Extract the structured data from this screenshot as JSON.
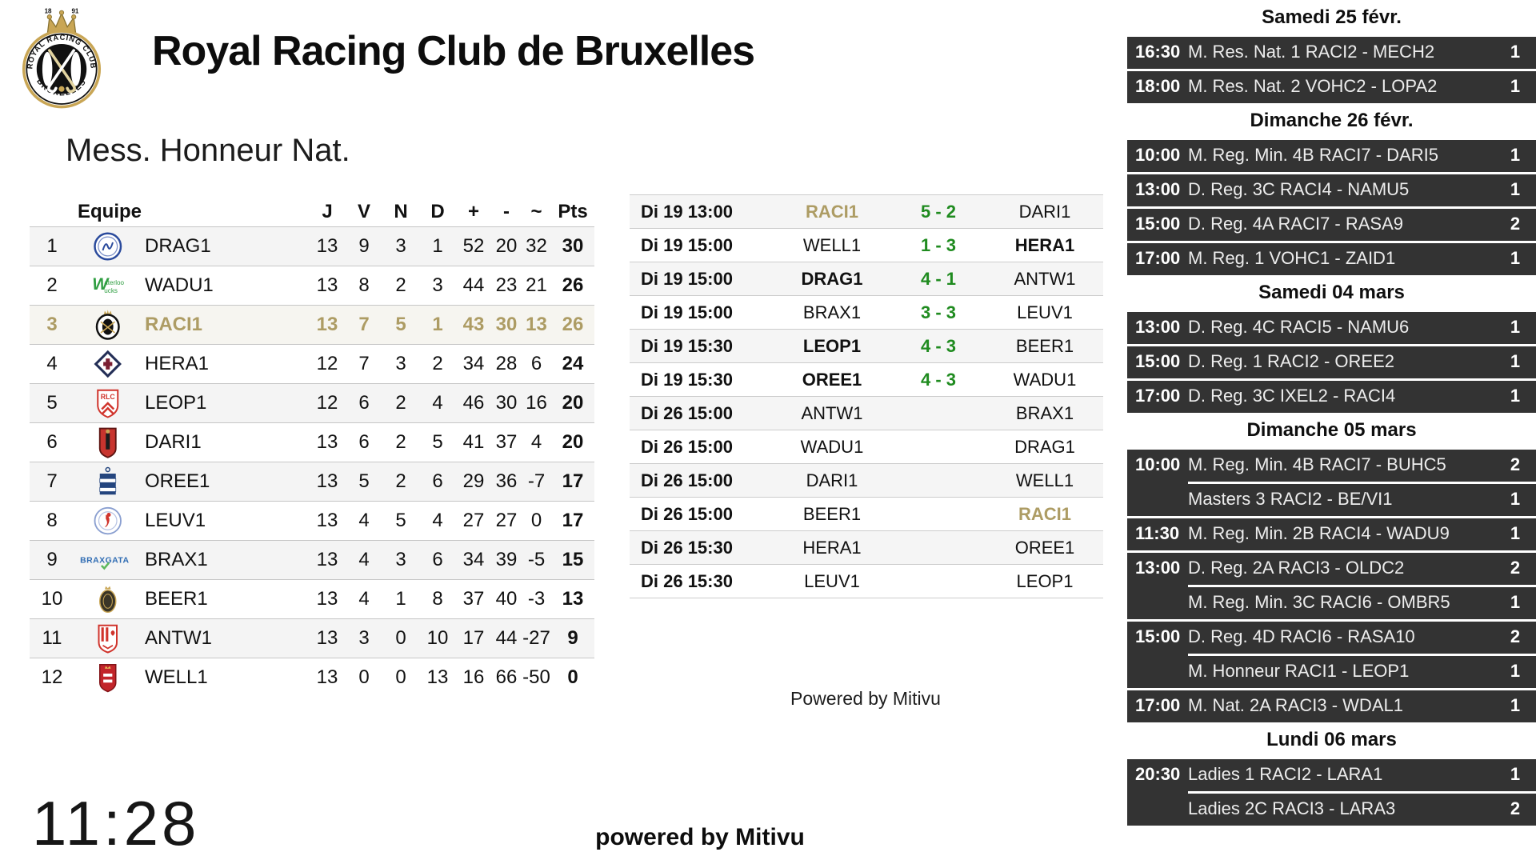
{
  "colors": {
    "gold": "#ad9c64",
    "score_green": "#1f8b1f",
    "sidebar_dark": "#333333"
  },
  "header": {
    "title": "Royal Racing Club de Bruxelles",
    "crest": {
      "top": "ROYAL RACING CLUB",
      "bottom": "BRUXELLES",
      "year_left": "18",
      "year_right": "91"
    }
  },
  "league": {
    "title": "Mess. Honneur Nat."
  },
  "standings": {
    "columns": [
      "Equipe",
      "J",
      "V",
      "N",
      "D",
      "+",
      "-",
      "~",
      "Pts"
    ],
    "rows": [
      {
        "rank": "1",
        "team": "DRAG1",
        "logo": "drag",
        "j": "13",
        "v": "9",
        "n": "3",
        "d": "1",
        "plus": "52",
        "minus": "20",
        "diff": "32",
        "pts": "30",
        "highlight": false
      },
      {
        "rank": "2",
        "team": "WADU1",
        "logo": "wadu",
        "j": "13",
        "v": "8",
        "n": "2",
        "d": "3",
        "plus": "44",
        "minus": "23",
        "diff": "21",
        "pts": "26",
        "highlight": false
      },
      {
        "rank": "3",
        "team": "RACI1",
        "logo": "raci",
        "j": "13",
        "v": "7",
        "n": "5",
        "d": "1",
        "plus": "43",
        "minus": "30",
        "diff": "13",
        "pts": "26",
        "highlight": true
      },
      {
        "rank": "4",
        "team": "HERA1",
        "logo": "hera",
        "j": "12",
        "v": "7",
        "n": "3",
        "d": "2",
        "plus": "34",
        "minus": "28",
        "diff": "6",
        "pts": "24",
        "highlight": false
      },
      {
        "rank": "5",
        "team": "LEOP1",
        "logo": "leop",
        "j": "12",
        "v": "6",
        "n": "2",
        "d": "4",
        "plus": "46",
        "minus": "30",
        "diff": "16",
        "pts": "20",
        "highlight": false
      },
      {
        "rank": "6",
        "team": "DARI1",
        "logo": "dari",
        "j": "13",
        "v": "6",
        "n": "2",
        "d": "5",
        "plus": "41",
        "minus": "37",
        "diff": "4",
        "pts": "20",
        "highlight": false
      },
      {
        "rank": "7",
        "team": "OREE1",
        "logo": "oree",
        "j": "13",
        "v": "5",
        "n": "2",
        "d": "6",
        "plus": "29",
        "minus": "36",
        "diff": "-7",
        "pts": "17",
        "highlight": false
      },
      {
        "rank": "8",
        "team": "LEUV1",
        "logo": "leuv",
        "j": "13",
        "v": "4",
        "n": "5",
        "d": "4",
        "plus": "27",
        "minus": "27",
        "diff": "0",
        "pts": "17",
        "highlight": false
      },
      {
        "rank": "9",
        "team": "BRAX1",
        "logo": "brax",
        "j": "13",
        "v": "4",
        "n": "3",
        "d": "6",
        "plus": "34",
        "minus": "39",
        "diff": "-5",
        "pts": "15",
        "highlight": false
      },
      {
        "rank": "10",
        "team": "BEER1",
        "logo": "beer",
        "j": "13",
        "v": "4",
        "n": "1",
        "d": "8",
        "plus": "37",
        "minus": "40",
        "diff": "-3",
        "pts": "13",
        "highlight": false
      },
      {
        "rank": "11",
        "team": "ANTW1",
        "logo": "antw",
        "j": "13",
        "v": "3",
        "n": "0",
        "d": "10",
        "plus": "17",
        "minus": "44",
        "diff": "-27",
        "pts": "9",
        "highlight": false
      },
      {
        "rank": "12",
        "team": "WELL1",
        "logo": "well",
        "j": "13",
        "v": "0",
        "n": "0",
        "d": "13",
        "plus": "16",
        "minus": "66",
        "diff": "-50",
        "pts": "0",
        "highlight": false
      }
    ]
  },
  "fixtures": {
    "rows": [
      {
        "datetime": "Di 19 13:00",
        "home": "RACI1",
        "home_style": "gold",
        "score": "5 - 2",
        "away": "DARI1",
        "away_style": ""
      },
      {
        "datetime": "Di 19 15:00",
        "home": "WELL1",
        "home_style": "",
        "score": "1 - 3",
        "away": "HERA1",
        "away_style": "bold"
      },
      {
        "datetime": "Di 19 15:00",
        "home": "DRAG1",
        "home_style": "bold",
        "score": "4 - 1",
        "away": "ANTW1",
        "away_style": ""
      },
      {
        "datetime": "Di 19 15:00",
        "home": "BRAX1",
        "home_style": "",
        "score": "3 - 3",
        "away": "LEUV1",
        "away_style": ""
      },
      {
        "datetime": "Di 19 15:30",
        "home": "LEOP1",
        "home_style": "bold",
        "score": "4 - 3",
        "away": "BEER1",
        "away_style": ""
      },
      {
        "datetime": "Di 19 15:30",
        "home": "OREE1",
        "home_style": "bold",
        "score": "4 - 3",
        "away": "WADU1",
        "away_style": ""
      },
      {
        "datetime": "Di 26 15:00",
        "home": "ANTW1",
        "home_style": "",
        "score": "",
        "away": "BRAX1",
        "away_style": ""
      },
      {
        "datetime": "Di 26 15:00",
        "home": "WADU1",
        "home_style": "",
        "score": "",
        "away": "DRAG1",
        "away_style": ""
      },
      {
        "datetime": "Di 26 15:00",
        "home": "DARI1",
        "home_style": "",
        "score": "",
        "away": "WELL1",
        "away_style": ""
      },
      {
        "datetime": "Di 26 15:00",
        "home": "BEER1",
        "home_style": "",
        "score": "",
        "away": "RACI1",
        "away_style": "gold"
      },
      {
        "datetime": "Di 26 15:30",
        "home": "HERA1",
        "home_style": "",
        "score": "",
        "away": "OREE1",
        "away_style": ""
      },
      {
        "datetime": "Di 26 15:30",
        "home": "LEUV1",
        "home_style": "",
        "score": "",
        "away": "LEOP1",
        "away_style": ""
      }
    ]
  },
  "powered_mid": "Powered by Mitivu",
  "clock": "11:28",
  "powered_bottom": "powered by Mitivu",
  "schedule": {
    "sections": [
      {
        "date": "Samedi 25 févr.",
        "matches": [
          {
            "time": "16:30",
            "label": "M. Res. Nat. 1 RACI2 - MECH2",
            "field": "1",
            "sub": false
          },
          {
            "time": "18:00",
            "label": "M. Res. Nat. 2 VOHC2 - LOPA2",
            "field": "1",
            "sub": false
          }
        ]
      },
      {
        "date": "Dimanche 26 févr.",
        "matches": [
          {
            "time": "10:00",
            "label": "M. Reg. Min. 4B RACI7 - DARI5",
            "field": "1",
            "sub": false
          },
          {
            "time": "13:00",
            "label": "D. Reg. 3C RACI4 - NAMU5",
            "field": "1",
            "sub": false
          },
          {
            "time": "15:00",
            "label": "D. Reg. 4A RACI7 - RASA9",
            "field": "2",
            "sub": false
          },
          {
            "time": "17:00",
            "label": "M. Reg. 1 VOHC1 - ZAID1",
            "field": "1",
            "sub": false
          }
        ]
      },
      {
        "date": "Samedi 04 mars",
        "matches": [
          {
            "time": "13:00",
            "label": "D. Reg. 4C RACI5 - NAMU6",
            "field": "1",
            "sub": false
          },
          {
            "time": "15:00",
            "label": "D. Reg. 1 RACI2 - OREE2",
            "field": "1",
            "sub": false
          },
          {
            "time": "17:00",
            "label": "D. Reg. 3C IXEL2 - RACI4",
            "field": "1",
            "sub": false
          }
        ]
      },
      {
        "date": "Dimanche 05 mars",
        "matches": [
          {
            "time": "10:00",
            "label": "M. Reg. Min. 4B RACI7 - BUHC5",
            "field": "2",
            "sub": false
          },
          {
            "time": "",
            "label": "Masters 3 RACI2 - BE/VI1",
            "field": "1",
            "sub": true
          },
          {
            "time": "11:30",
            "label": "M. Reg. Min. 2B RACI4 - WADU9",
            "field": "1",
            "sub": false
          },
          {
            "time": "13:00",
            "label": "D. Reg. 2A RACI3 - OLDC2",
            "field": "2",
            "sub": false
          },
          {
            "time": "",
            "label": "M. Reg. Min. 3C RACI6 - OMBR5",
            "field": "1",
            "sub": true
          },
          {
            "time": "15:00",
            "label": "D. Reg. 4D RACI6 - RASA10",
            "field": "2",
            "sub": false
          },
          {
            "time": "",
            "label": "M. Honneur RACI1 - LEOP1",
            "field": "1",
            "sub": true
          },
          {
            "time": "17:00",
            "label": "M. Nat. 2A RACI3 - WDAL1",
            "field": "1",
            "sub": false
          }
        ]
      },
      {
        "date": "Lundi 06 mars",
        "matches": [
          {
            "time": "20:30",
            "label": "Ladies 1 RACI2 - LARA1",
            "field": "1",
            "sub": false
          },
          {
            "time": "",
            "label": "Ladies 2C RACI3 - LARA3",
            "field": "2",
            "sub": true
          }
        ]
      }
    ]
  }
}
